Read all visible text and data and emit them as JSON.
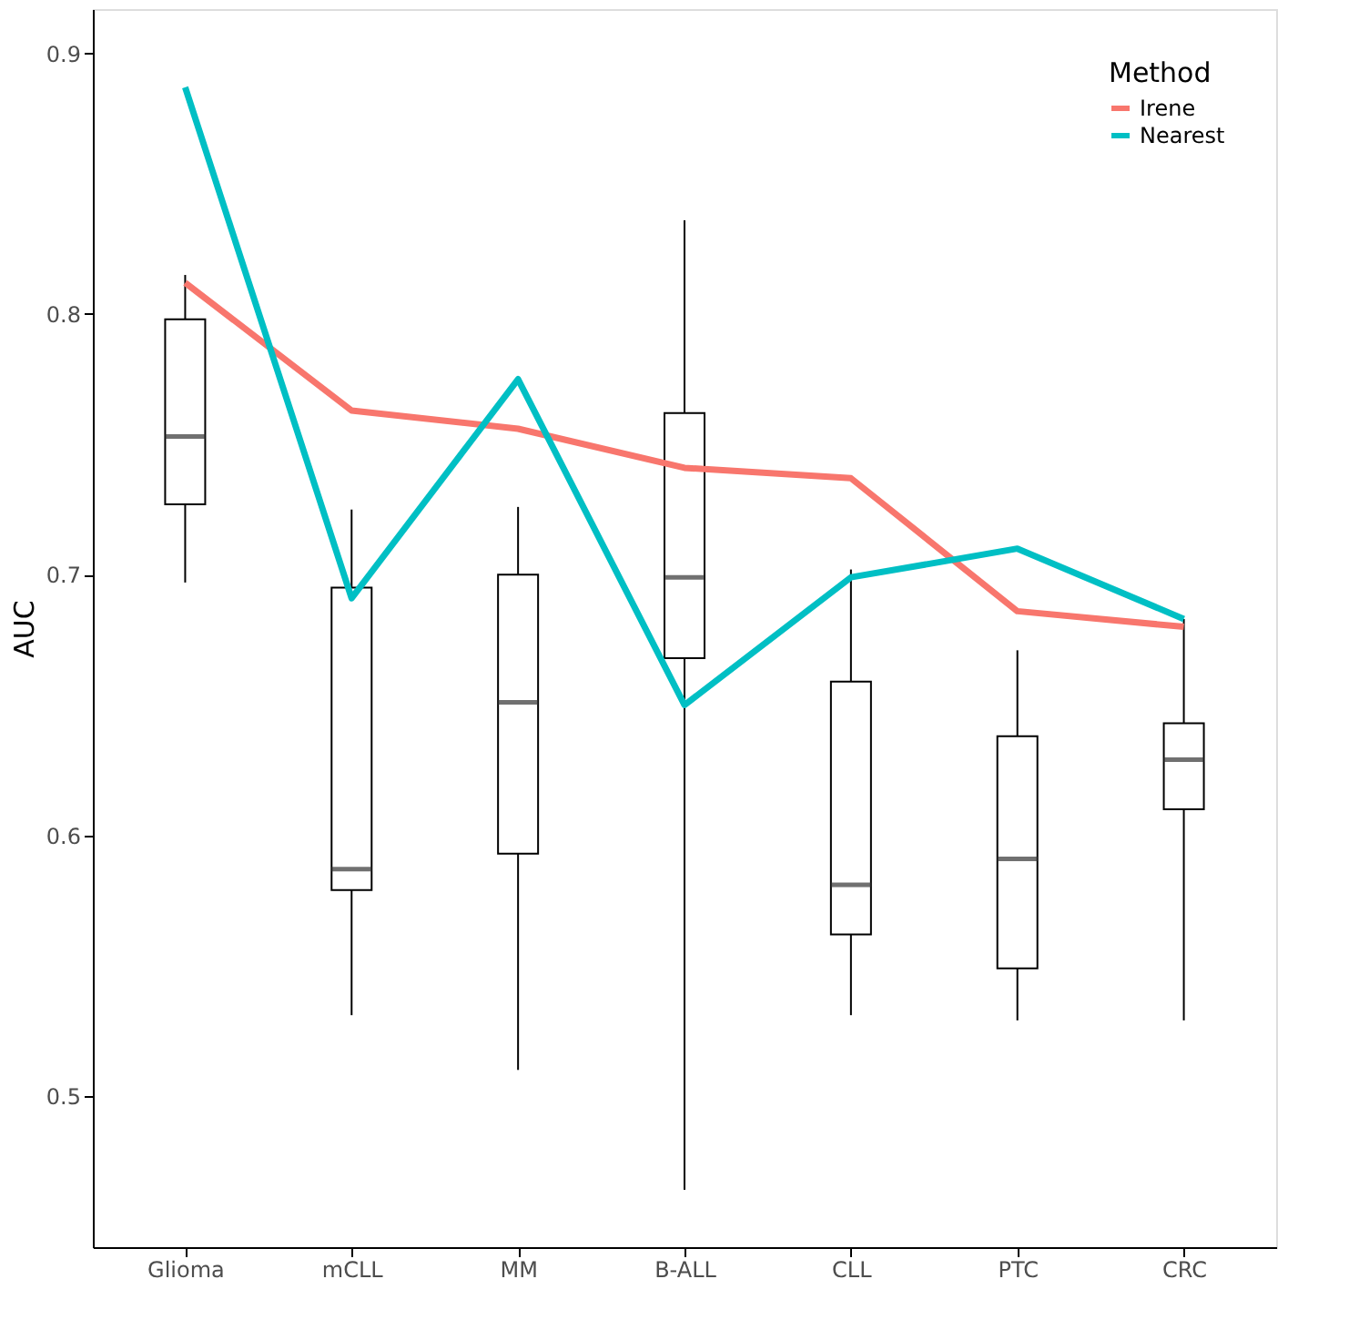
{
  "chart_data": {
    "type": "box",
    "ylabel": "AUC",
    "legend_title": "Method",
    "legend": "top right",
    "grid": false,
    "categories": [
      "Glioma",
      "mCLL",
      "MM",
      "B-ALL",
      "CLL",
      "PTC",
      "CRC"
    ],
    "boxes": [
      {
        "low": 0.697,
        "q1": 0.727,
        "median": 0.753,
        "q3": 0.798,
        "high": 0.815
      },
      {
        "low": 0.531,
        "q1": 0.579,
        "median": 0.587,
        "q3": 0.695,
        "high": 0.725
      },
      {
        "low": 0.51,
        "q1": 0.593,
        "median": 0.651,
        "q3": 0.7,
        "high": 0.726
      },
      {
        "low": 0.464,
        "q1": 0.668,
        "median": 0.699,
        "q3": 0.762,
        "high": 0.836
      },
      {
        "low": 0.531,
        "q1": 0.562,
        "median": 0.581,
        "q3": 0.659,
        "high": 0.702
      },
      {
        "low": 0.529,
        "q1": 0.549,
        "median": 0.591,
        "q3": 0.638,
        "high": 0.671
      },
      {
        "low": 0.529,
        "q1": 0.61,
        "median": 0.629,
        "q3": 0.643,
        "high": 0.683
      }
    ],
    "series": [
      {
        "name": "Irene",
        "type": "line",
        "color": "#f8766d",
        "values": [
          0.812,
          0.763,
          0.756,
          0.741,
          0.737,
          0.686,
          0.68
        ]
      },
      {
        "name": "Nearest",
        "type": "line",
        "color": "#00bfc4",
        "values": [
          0.887,
          0.691,
          0.775,
          0.65,
          0.699,
          0.71,
          0.683
        ]
      }
    ],
    "ylim": [
      0.442,
      0.917
    ],
    "yticks": [
      0.5,
      0.6,
      0.7,
      0.8,
      0.9
    ]
  }
}
